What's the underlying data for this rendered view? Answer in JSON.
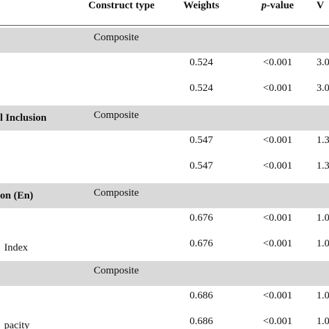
{
  "header": {
    "columns": [
      "Construct type",
      "Weights",
      {
        "italic": "p",
        "text": "-value"
      },
      "V"
    ]
  },
  "groups": [
    {
      "type": "Composite",
      "rows": [
        {
          "weight": "0.524",
          "p": "<0.001",
          "vif": "3.0"
        },
        {
          "weight": "0.524",
          "p": "<0.001",
          "vif": "3.0"
        }
      ]
    },
    {
      "label": "l Inclusion",
      "type": "Composite",
      "rows": [
        {
          "weight": "0.547",
          "p": "<0.001",
          "vif": "1.3"
        },
        {
          "weight": "0.547",
          "p": "<0.001",
          "vif": "1.3"
        }
      ]
    },
    {
      "label": "on (En)",
      "type": "Composite",
      "rows": [
        {
          "weight": "0.676",
          "p": "<0.001",
          "vif": "1.0"
        },
        {
          "label": "Index",
          "weight": "0.676",
          "p": "<0.001",
          "vif": "1.0"
        }
      ]
    },
    {
      "type": "Composite",
      "rows": [
        {
          "weight": "0.686",
          "p": "<0.001",
          "vif": "1.0"
        },
        {
          "label": "pacity",
          "weight": "0.686",
          "p": "<0.001",
          "vif": "1.0"
        }
      ]
    }
  ]
}
